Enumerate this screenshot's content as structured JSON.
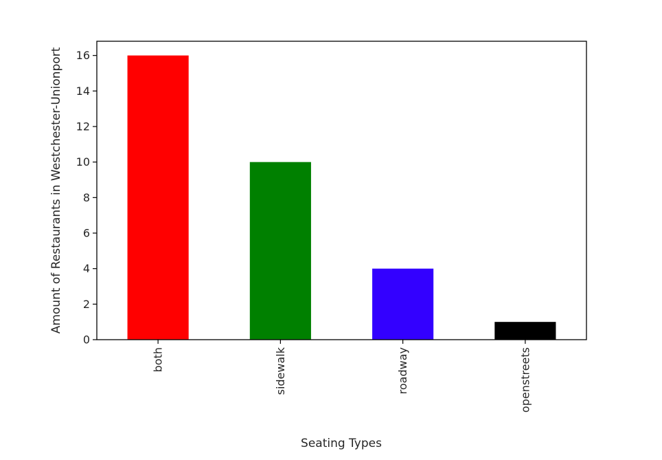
{
  "chart_data": {
    "type": "bar",
    "categories": [
      "both",
      "sidewalk",
      "roadway",
      "openstreets"
    ],
    "values": [
      16,
      10,
      4,
      1
    ],
    "colors": [
      "#ff0000",
      "#008000",
      "#3300ff",
      "#000000"
    ],
    "xlabel": "Seating Types",
    "ylabel": "Amount of Restaurants in Westchester-Unionport",
    "ylim": [
      0,
      16.8
    ],
    "yticks": [
      0,
      2,
      4,
      6,
      8,
      10,
      12,
      14,
      16
    ],
    "grid": false,
    "legend": "none"
  }
}
